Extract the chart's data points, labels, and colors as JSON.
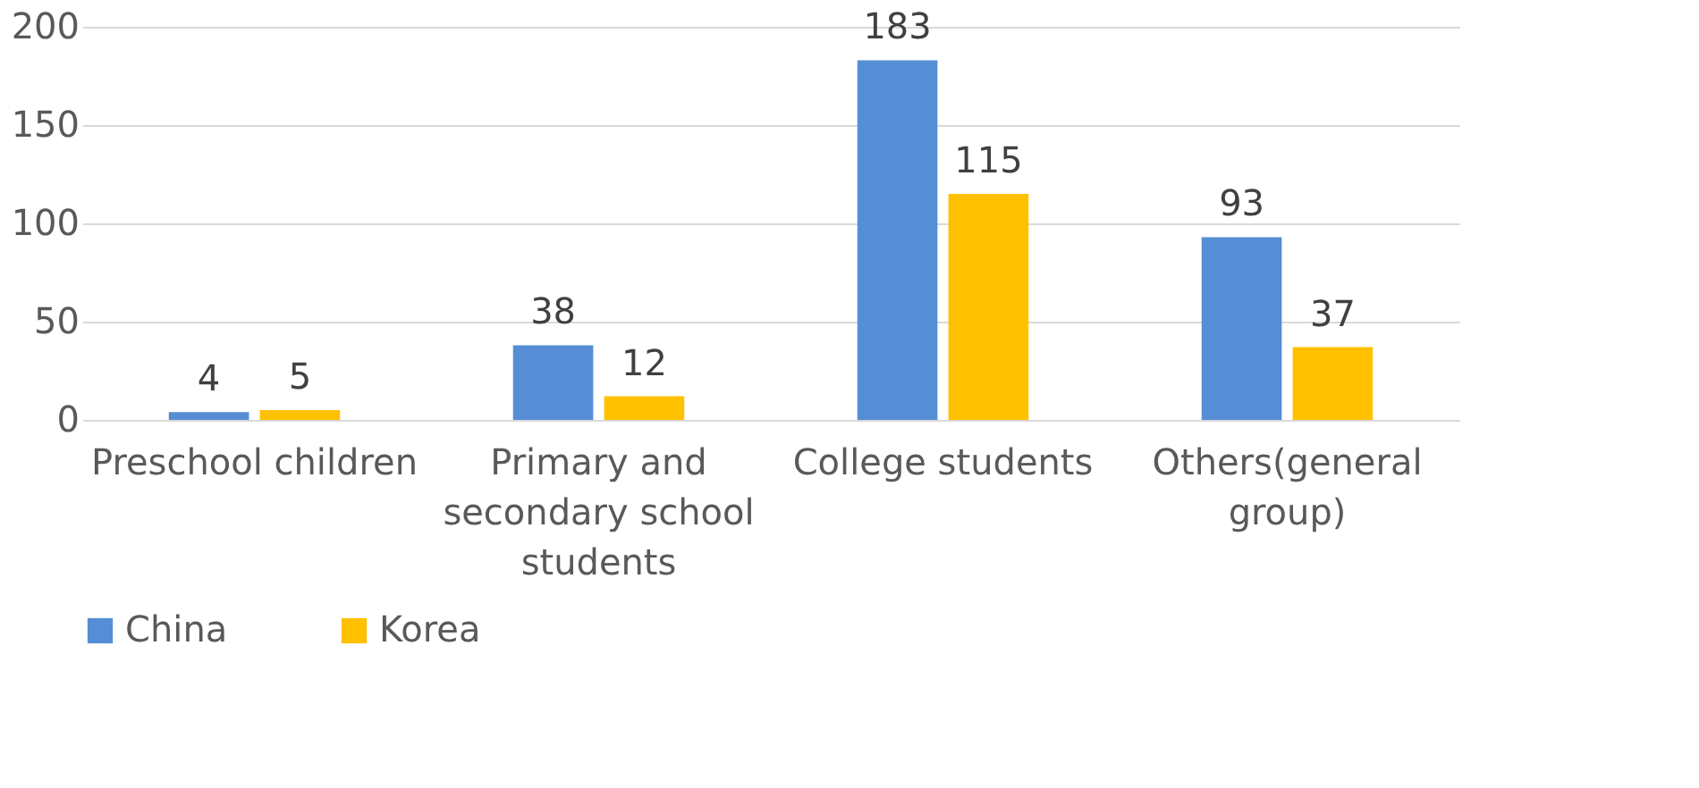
{
  "chart_data": {
    "type": "bar",
    "categories": [
      "Preschool children",
      "Primary and secondary school students",
      "College students",
      "Others(general group)"
    ],
    "series": [
      {
        "name": "China",
        "color": "#558ed5",
        "values": [
          4,
          38,
          183,
          93
        ]
      },
      {
        "name": "Korea",
        "color": "#ffc000",
        "values": [
          5,
          12,
          115,
          37
        ]
      }
    ],
    "ylim": [
      0,
      200
    ],
    "yticks": [
      0,
      50,
      100,
      150,
      200
    ],
    "grid": "y",
    "legend": "bottom",
    "data_labels": true
  }
}
